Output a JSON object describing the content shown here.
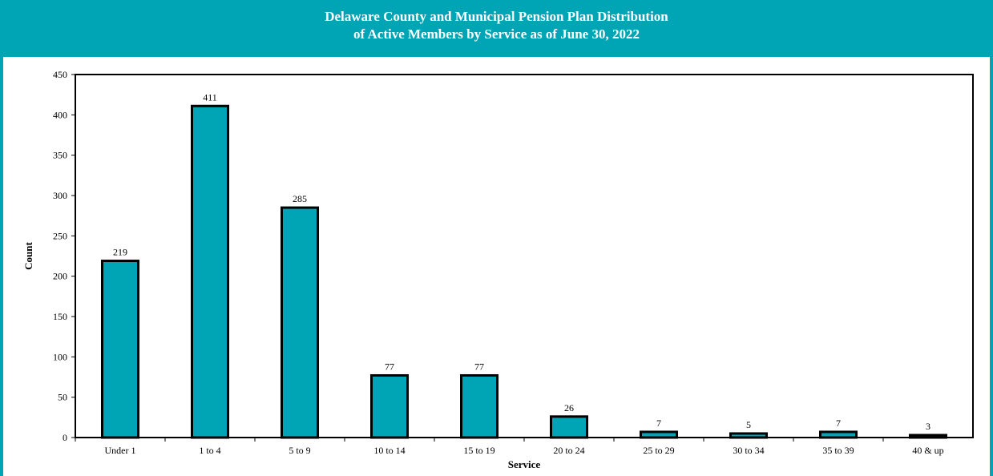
{
  "colors": {
    "accent": "#00A5B5",
    "bar_fill": "#00A5B5",
    "bar_stroke": "#000000"
  },
  "chart_data": {
    "type": "bar",
    "title_line1": "Delaware County and Municipal Pension Plan Distribution",
    "title_line2": "of Active Members by Service as of June 30, 2022",
    "xlabel": "Service",
    "ylabel": "Count",
    "categories": [
      "Under 1",
      "1 to 4",
      "5 to 9",
      "10 to 14",
      "15 to 19",
      "20 to 24",
      "25 to 29",
      "30 to 34",
      "35 to 39",
      "40 & up"
    ],
    "values": [
      219,
      411,
      285,
      77,
      77,
      26,
      7,
      5,
      7,
      3
    ],
    "ylim": [
      0,
      450
    ],
    "yticks": [
      0,
      50,
      100,
      150,
      200,
      250,
      300,
      350,
      400,
      450
    ],
    "grid": false,
    "data_labels": true
  }
}
